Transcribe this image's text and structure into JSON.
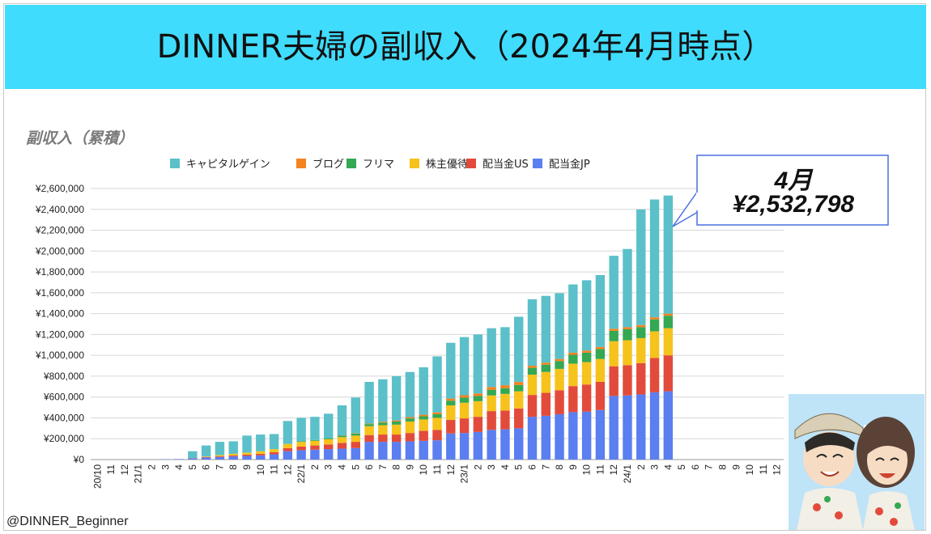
{
  "header": {
    "title": "DINNER夫婦の副収入（2024年4月時点）"
  },
  "chart_title": "副収入（累積）",
  "callout": {
    "month": "4月",
    "value": "¥2,532,798"
  },
  "credit": "@DINNER_Beginner",
  "colors": {
    "banner": "#40dcfd",
    "capital_gain": "#5bc0c9",
    "blog": "#f5821f",
    "flea": "#34a853",
    "yutai": "#f6c21c",
    "div_us": "#e24b3b",
    "div_jp": "#5b7ef0"
  },
  "chart_data": {
    "type": "bar",
    "stacked": true,
    "title": "副収入（累積）",
    "xlabel": "",
    "ylabel": "",
    "ylim": [
      0,
      2600000
    ],
    "y_ticks": [
      "¥0",
      "¥200,000",
      "¥400,000",
      "¥600,000",
      "¥800,000",
      "¥1,000,000",
      "¥1,200,000",
      "¥1,400,000",
      "¥1,600,000",
      "¥1,800,000",
      "¥2,000,000",
      "¥2,200,000",
      "¥2,400,000",
      "¥2,600,000"
    ],
    "legend_position": "top",
    "categories": [
      "20/10",
      "11",
      "12",
      "21/1",
      "2",
      "3",
      "4",
      "5",
      "6",
      "7",
      "8",
      "9",
      "10",
      "11",
      "12",
      "22/1",
      "2",
      "3",
      "4",
      "5",
      "6",
      "7",
      "8",
      "9",
      "10",
      "11",
      "12",
      "23/1",
      "2",
      "3",
      "4",
      "5",
      "6",
      "7",
      "8",
      "9",
      "10",
      "11",
      "12",
      "24/1",
      "2",
      "3",
      "4",
      "5",
      "6",
      "7",
      "8",
      "9",
      "10",
      "11",
      "12"
    ],
    "series": [
      {
        "name": "配当金JP",
        "color": "#5b7ef0",
        "values": [
          0,
          0,
          0,
          0,
          0,
          3000,
          5000,
          12000,
          20000,
          25000,
          30000,
          35000,
          40000,
          50000,
          80000,
          90000,
          95000,
          100000,
          105000,
          110000,
          170000,
          170000,
          170000,
          175000,
          180000,
          185000,
          250000,
          255000,
          265000,
          285000,
          290000,
          300000,
          410000,
          420000,
          435000,
          455000,
          460000,
          475000,
          610000,
          615000,
          625000,
          645000,
          655000,
          0,
          0,
          0,
          0,
          0,
          0,
          0,
          0
        ]
      },
      {
        "name": "配当金US",
        "color": "#e24b3b",
        "values": [
          0,
          0,
          0,
          0,
          0,
          0,
          0,
          2000,
          5000,
          8000,
          10000,
          12000,
          15000,
          20000,
          30000,
          35000,
          40000,
          45000,
          55000,
          60000,
          65000,
          70000,
          70000,
          80000,
          95000,
          100000,
          130000,
          140000,
          145000,
          180000,
          180000,
          190000,
          210000,
          220000,
          230000,
          250000,
          260000,
          270000,
          285000,
          290000,
          300000,
          330000,
          345000,
          0,
          0,
          0,
          0,
          0,
          0,
          0,
          0
        ]
      },
      {
        "name": "株主優待",
        "color": "#f6c21c",
        "values": [
          0,
          0,
          0,
          0,
          0,
          0,
          0,
          1000,
          5000,
          10000,
          15000,
          20000,
          25000,
          30000,
          40000,
          45000,
          45000,
          50000,
          55000,
          60000,
          85000,
          90000,
          95000,
          110000,
          110000,
          115000,
          140000,
          150000,
          150000,
          150000,
          160000,
          165000,
          195000,
          200000,
          205000,
          215000,
          215000,
          220000,
          240000,
          240000,
          240000,
          255000,
          260000,
          0,
          0,
          0,
          0,
          0,
          0,
          0,
          0
        ]
      },
      {
        "name": "フリマ",
        "color": "#34a853",
        "values": [
          0,
          0,
          0,
          0,
          0,
          0,
          0,
          0,
          0,
          0,
          0,
          0,
          0,
          0,
          0,
          5000,
          8000,
          10000,
          15000,
          20000,
          20000,
          25000,
          30000,
          30000,
          30000,
          35000,
          45000,
          50000,
          50000,
          55000,
          55000,
          60000,
          65000,
          70000,
          75000,
          85000,
          90000,
          95000,
          100000,
          105000,
          105000,
          115000,
          120000,
          0,
          0,
          0,
          0,
          0,
          0,
          0,
          0
        ]
      },
      {
        "name": "ブログ",
        "color": "#f5821f",
        "values": [
          0,
          0,
          0,
          0,
          0,
          0,
          0,
          0,
          0,
          0,
          0,
          0,
          0,
          0,
          0,
          0,
          0,
          0,
          2000,
          3000,
          5000,
          8000,
          10000,
          12000,
          15000,
          18000,
          20000,
          22000,
          24000,
          26000,
          28000,
          29000,
          20000,
          20000,
          20000,
          20000,
          20000,
          20000,
          20000,
          20000,
          20000,
          20000,
          20000,
          0,
          0,
          0,
          0,
          0,
          0,
          0,
          0
        ]
      },
      {
        "name": "キャピタルゲイン",
        "color": "#5bc0c9",
        "values": [
          0,
          0,
          0,
          0,
          0,
          0,
          0,
          65000,
          105000,
          127000,
          120000,
          163000,
          160000,
          145000,
          220000,
          225000,
          222000,
          235000,
          288000,
          342000,
          400000,
          407000,
          425000,
          433000,
          455000,
          537000,
          535000,
          558000,
          566000,
          564000,
          557000,
          626000,
          638000,
          640000,
          631000,
          655000,
          675000,
          690000,
          700000,
          750000,
          1110000,
          1130000,
          1132798,
          0,
          0,
          0,
          0,
          0,
          0,
          0,
          0
        ]
      }
    ]
  }
}
